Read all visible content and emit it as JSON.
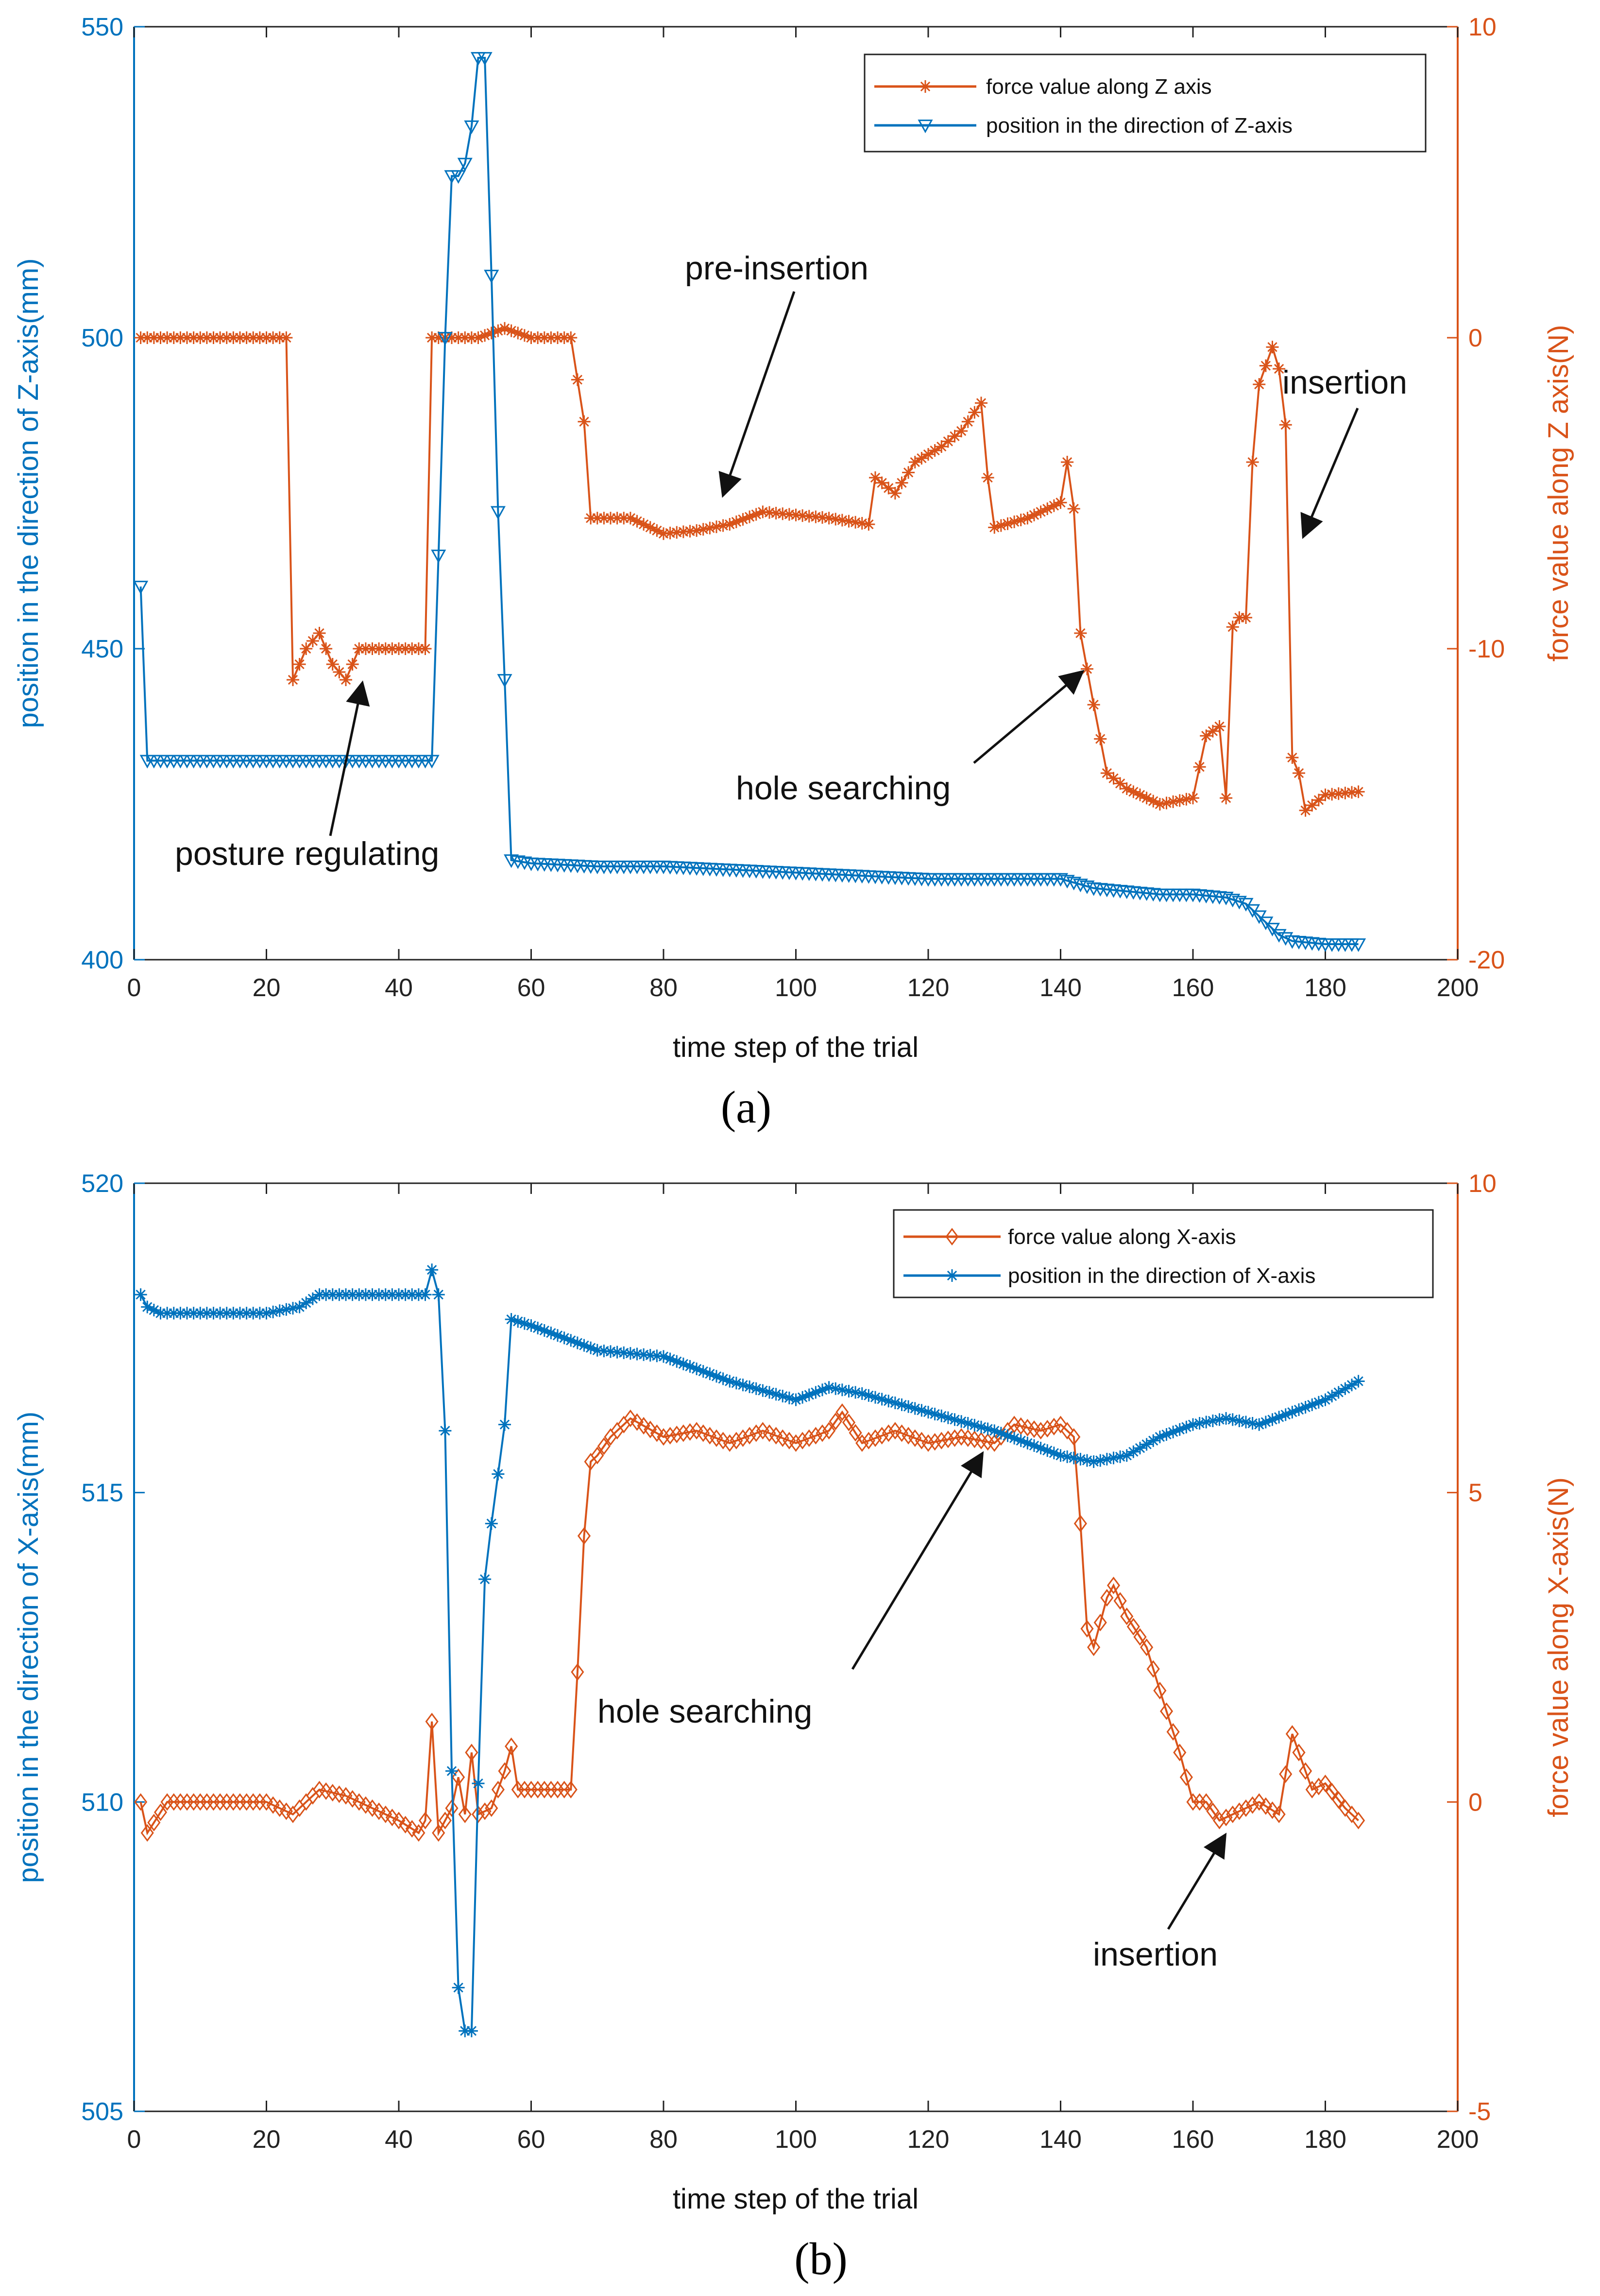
{
  "colors": {
    "blue": "#0072BD",
    "orange": "#D95319",
    "text": "#111111"
  },
  "chart_data": [
    {
      "type": "line",
      "panel_label": "(a)",
      "xlabel": "time step of the trial",
      "ylabel_left": "position in the direction of Z-axis(mm)",
      "ylabel_right": "force value along Z axis(N)",
      "xlim": [
        0,
        200
      ],
      "ylim_left": [
        400,
        550
      ],
      "ylim_right": [
        -20,
        10
      ],
      "xticks": [
        0,
        20,
        40,
        60,
        80,
        100,
        120,
        140,
        160,
        180,
        200
      ],
      "yticks_left": [
        400,
        450,
        500,
        550
      ],
      "yticks_right": [
        -20,
        -10,
        0,
        10
      ],
      "legend": {
        "position": "top-right",
        "entries": [
          "force value along Z axis",
          "position in the direction of Z-axis"
        ]
      },
      "series": [
        {
          "name": "force value along Z axis",
          "axis": "right",
          "marker": "asterisk",
          "color": "#D95319",
          "points": [
            [
              1,
              0
            ],
            [
              5,
              0
            ],
            [
              10,
              0
            ],
            [
              15,
              0
            ],
            [
              20,
              0
            ],
            [
              23,
              0
            ],
            [
              24,
              -11
            ],
            [
              26,
              -10
            ],
            [
              28,
              -9.5
            ],
            [
              30,
              -10.5
            ],
            [
              32,
              -11
            ],
            [
              34,
              -10
            ],
            [
              38,
              -10
            ],
            [
              44,
              -10
            ],
            [
              45,
              0
            ],
            [
              48,
              0
            ],
            [
              52,
              0
            ],
            [
              56,
              0.3
            ],
            [
              60,
              0
            ],
            [
              66,
              0
            ],
            [
              68,
              -2.7
            ],
            [
              69,
              -5.8
            ],
            [
              75,
              -5.8
            ],
            [
              80,
              -6.3
            ],
            [
              85,
              -6.2
            ],
            [
              90,
              -6
            ],
            [
              95,
              -5.6
            ],
            [
              100,
              -5.7
            ],
            [
              105,
              -5.8
            ],
            [
              111,
              -6
            ],
            [
              112,
              -4.5
            ],
            [
              115,
              -5
            ],
            [
              118,
              -4
            ],
            [
              122,
              -3.5
            ],
            [
              125,
              -3
            ],
            [
              128,
              -2.1
            ],
            [
              129,
              -4.5
            ],
            [
              130,
              -6.1
            ],
            [
              135,
              -5.8
            ],
            [
              140,
              -5.3
            ],
            [
              141,
              -4
            ],
            [
              142,
              -5.5
            ],
            [
              143,
              -9.5
            ],
            [
              145,
              -11.8
            ],
            [
              147,
              -14
            ],
            [
              150,
              -14.5
            ],
            [
              155,
              -15
            ],
            [
              160,
              -14.8
            ],
            [
              162,
              -12.8
            ],
            [
              164,
              -12.5
            ],
            [
              165,
              -14.8
            ],
            [
              166,
              -9.3
            ],
            [
              167,
              -9
            ],
            [
              168,
              -9
            ],
            [
              169,
              -4
            ],
            [
              170,
              -1.5
            ],
            [
              172,
              -0.3
            ],
            [
              173,
              -1
            ],
            [
              174,
              -2.8
            ],
            [
              175,
              -13.5
            ],
            [
              176,
              -14
            ],
            [
              177,
              -15.2
            ],
            [
              180,
              -14.7
            ],
            [
              185,
              -14.6
            ]
          ]
        },
        {
          "name": "position in the direction of Z-axis",
          "axis": "left",
          "marker": "triangle-down",
          "color": "#0072BD",
          "points": [
            [
              1,
              460
            ],
            [
              2,
              432
            ],
            [
              10,
              432
            ],
            [
              20,
              432
            ],
            [
              30,
              432
            ],
            [
              40,
              432
            ],
            [
              45,
              432
            ],
            [
              46,
              465
            ],
            [
              47,
              500
            ],
            [
              48,
              526
            ],
            [
              49,
              526
            ],
            [
              50,
              528
            ],
            [
              51,
              534
            ],
            [
              52,
              545
            ],
            [
              53,
              545
            ],
            [
              54,
              510
            ],
            [
              55,
              472
            ],
            [
              56,
              445
            ],
            [
              57,
              416
            ],
            [
              60,
              415.5
            ],
            [
              70,
              415
            ],
            [
              80,
              415
            ],
            [
              90,
              414.5
            ],
            [
              100,
              414
            ],
            [
              110,
              413.5
            ],
            [
              120,
              413
            ],
            [
              130,
              413
            ],
            [
              140,
              413
            ],
            [
              145,
              411.5
            ],
            [
              150,
              411
            ],
            [
              155,
              410.5
            ],
            [
              160,
              410.5
            ],
            [
              165,
              410
            ],
            [
              168,
              409
            ],
            [
              170,
              407
            ],
            [
              173,
              404
            ],
            [
              175,
              403
            ],
            [
              180,
              402.5
            ],
            [
              185,
              402.5
            ]
          ]
        }
      ],
      "annotations": [
        {
          "text": "pre-insertion"
        },
        {
          "text": "insertion"
        },
        {
          "text": "hole searching"
        },
        {
          "text": "posture regulating"
        }
      ]
    },
    {
      "type": "line",
      "panel_label": "(b)",
      "xlabel": "time step of the trial",
      "ylabel_left": "position in the direction of X-axis(mm)",
      "ylabel_right": "force value along X-axis(N)",
      "xlim": [
        0,
        200
      ],
      "ylim_left": [
        505,
        520
      ],
      "ylim_right": [
        -5,
        10
      ],
      "xticks": [
        0,
        20,
        40,
        60,
        80,
        100,
        120,
        140,
        160,
        180,
        200
      ],
      "yticks_left": [
        505,
        510,
        515,
        520
      ],
      "yticks_right": [
        -5,
        0,
        5,
        10
      ],
      "legend": {
        "position": "top-right",
        "entries": [
          "force value along X-axis",
          "position in the direction of X-axis"
        ]
      },
      "series": [
        {
          "name": "force value along X-axis",
          "axis": "right",
          "marker": "diamond",
          "color": "#D95319",
          "points": [
            [
              1,
              0
            ],
            [
              2,
              -0.5
            ],
            [
              5,
              0
            ],
            [
              10,
              0
            ],
            [
              15,
              0
            ],
            [
              20,
              0
            ],
            [
              24,
              -0.2
            ],
            [
              28,
              0.2
            ],
            [
              32,
              0.1
            ],
            [
              36,
              -0.1
            ],
            [
              40,
              -0.3
            ],
            [
              43,
              -0.5
            ],
            [
              44,
              -0.3
            ],
            [
              45,
              1.3
            ],
            [
              46,
              -0.5
            ],
            [
              48,
              -0.1
            ],
            [
              49,
              0.4
            ],
            [
              50,
              -0.2
            ],
            [
              51,
              0.8
            ],
            [
              52,
              -0.2
            ],
            [
              54,
              -0.1
            ],
            [
              56,
              0.5
            ],
            [
              57,
              0.9
            ],
            [
              58,
              0.2
            ],
            [
              62,
              0.2
            ],
            [
              66,
              0.2
            ],
            [
              67,
              2.1
            ],
            [
              68,
              4.3
            ],
            [
              69,
              5.5
            ],
            [
              70,
              5.6
            ],
            [
              72,
              5.9
            ],
            [
              75,
              6.2
            ],
            [
              80,
              5.9
            ],
            [
              85,
              6
            ],
            [
              90,
              5.8
            ],
            [
              95,
              6
            ],
            [
              100,
              5.8
            ],
            [
              105,
              6
            ],
            [
              107,
              6.3
            ],
            [
              110,
              5.8
            ],
            [
              115,
              6
            ],
            [
              120,
              5.8
            ],
            [
              125,
              5.9
            ],
            [
              130,
              5.8
            ],
            [
              133,
              6.1
            ],
            [
              137,
              6
            ],
            [
              140,
              6.1
            ],
            [
              142,
              5.9
            ],
            [
              143,
              4.5
            ],
            [
              144,
              2.8
            ],
            [
              145,
              2.5
            ],
            [
              147,
              3.3
            ],
            [
              148,
              3.5
            ],
            [
              150,
              3
            ],
            [
              153,
              2.5
            ],
            [
              155,
              1.8
            ],
            [
              158,
              0.8
            ],
            [
              160,
              0
            ],
            [
              162,
              0
            ],
            [
              164,
              -0.3
            ],
            [
              166,
              -0.2
            ],
            [
              170,
              0
            ],
            [
              173,
              -0.2
            ],
            [
              175,
              1.1
            ],
            [
              176,
              0.8
            ],
            [
              178,
              0.2
            ],
            [
              180,
              0.3
            ],
            [
              183,
              -0.1
            ],
            [
              185,
              -0.3
            ]
          ]
        },
        {
          "name": "position in the direction of X-axis",
          "axis": "left",
          "marker": "asterisk",
          "color": "#0072BD",
          "points": [
            [
              1,
              518.2
            ],
            [
              2,
              518
            ],
            [
              4,
              517.9
            ],
            [
              10,
              517.9
            ],
            [
              20,
              517.9
            ],
            [
              25,
              518
            ],
            [
              28,
              518.2
            ],
            [
              30,
              518.2
            ],
            [
              35,
              518.2
            ],
            [
              40,
              518.2
            ],
            [
              44,
              518.2
            ],
            [
              45,
              518.6
            ],
            [
              46,
              518.2
            ],
            [
              47,
              516
            ],
            [
              48,
              510.5
            ],
            [
              49,
              507
            ],
            [
              50,
              506.3
            ],
            [
              51,
              506.3
            ],
            [
              52,
              510.3
            ],
            [
              53,
              513.6
            ],
            [
              54,
              514.5
            ],
            [
              55,
              515.3
            ],
            [
              56,
              516.1
            ],
            [
              57,
              517.8
            ],
            [
              60,
              517.7
            ],
            [
              70,
              517.3
            ],
            [
              80,
              517.2
            ],
            [
              90,
              516.8
            ],
            [
              100,
              516.5
            ],
            [
              105,
              516.7
            ],
            [
              110,
              516.6
            ],
            [
              120,
              516.3
            ],
            [
              130,
              516
            ],
            [
              140,
              515.6
            ],
            [
              145,
              515.5
            ],
            [
              150,
              515.6
            ],
            [
              155,
              515.9
            ],
            [
              160,
              516.1
            ],
            [
              165,
              516.2
            ],
            [
              170,
              516.1
            ],
            [
              175,
              516.3
            ],
            [
              180,
              516.5
            ],
            [
              185,
              516.8
            ]
          ]
        }
      ],
      "annotations": [
        {
          "text": "hole searching"
        },
        {
          "text": "insertion"
        }
      ]
    }
  ]
}
